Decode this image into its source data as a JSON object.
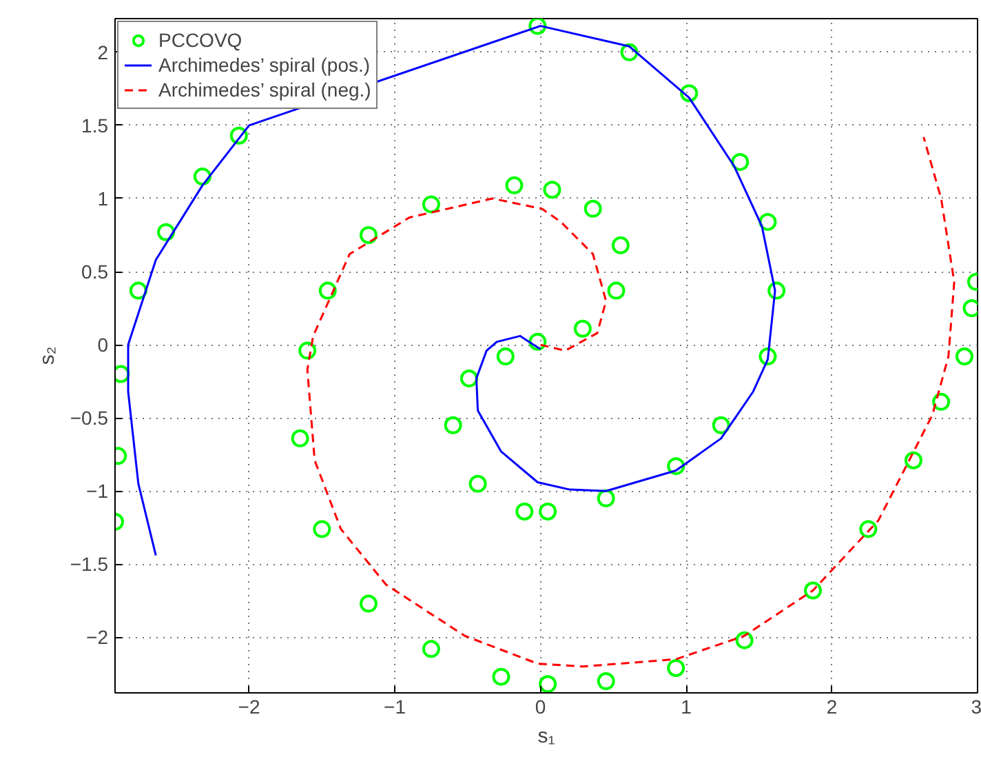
{
  "chart_data": {
    "type": "line",
    "xlabel": "s₁",
    "ylabel": "s₂",
    "xlim": [
      -2.92,
      3.0
    ],
    "ylim": [
      -2.38,
      2.23
    ],
    "xticks": [
      -2,
      -1,
      0,
      1,
      2,
      3
    ],
    "yticks": [
      -2,
      -1.5,
      -1,
      -0.5,
      0,
      0.5,
      1,
      1.5,
      2
    ],
    "grid": true,
    "legend": "top left",
    "series": [
      {
        "name": "PCCOVQ",
        "type": "scatter",
        "marker": "circle",
        "color": "#00ff00",
        "x": [
          -2.92,
          -2.9,
          -2.88,
          -2.76,
          -2.57,
          -2.32,
          -2.07,
          -0.02,
          0.61,
          1.02,
          1.37,
          1.56,
          1.62,
          1.56,
          1.24,
          0.93,
          0.45,
          0.05,
          -0.11,
          -0.43,
          -0.6,
          -0.49,
          -0.24,
          -0.02,
          0.29,
          0.52,
          0.55,
          0.36,
          0.08,
          -0.18,
          -0.75,
          -1.18,
          -1.46,
          -1.6,
          -1.65,
          -1.5,
          -1.18,
          -0.75,
          -0.27,
          0.05,
          0.45,
          0.93,
          1.4,
          1.87,
          2.25,
          2.56,
          2.75,
          2.91,
          2.96,
          2.99
        ],
        "values": [
          -1.21,
          -0.76,
          -0.2,
          0.37,
          0.77,
          1.15,
          1.43,
          2.18,
          2.0,
          1.72,
          1.25,
          0.84,
          0.37,
          -0.08,
          -0.55,
          -0.83,
          -1.05,
          -1.14,
          -1.14,
          -0.95,
          -0.55,
          -0.23,
          -0.08,
          0.02,
          0.11,
          0.37,
          0.68,
          0.93,
          1.06,
          1.09,
          0.96,
          0.75,
          0.37,
          -0.04,
          -0.64,
          -1.26,
          -1.77,
          -2.08,
          -2.27,
          -2.32,
          -2.3,
          -2.21,
          -2.02,
          -1.68,
          -1.26,
          -0.79,
          -0.39,
          -0.08,
          0.25,
          0.43
        ]
      },
      {
        "name": "Archimedes’ spiral (pos.)",
        "line_style": "solid",
        "color": "#0000ff",
        "x": [
          0.0,
          -0.14,
          -0.3,
          -0.37,
          -0.44,
          -0.43,
          -0.27,
          -0.02,
          0.2,
          0.45,
          0.93,
          1.24,
          1.46,
          1.56,
          1.61,
          1.52,
          1.33,
          1.02,
          0.61,
          0.0,
          -2.0,
          -2.32,
          -2.64,
          -2.83,
          -2.83,
          -2.76,
          -2.64
        ],
        "values": [
          -0.03,
          0.06,
          0.02,
          -0.04,
          -0.23,
          -0.45,
          -0.73,
          -0.94,
          -0.99,
          -1.0,
          -0.86,
          -0.64,
          -0.32,
          -0.1,
          0.37,
          0.81,
          1.22,
          1.69,
          2.04,
          2.18,
          1.5,
          1.09,
          0.58,
          0.0,
          -0.32,
          -0.95,
          -1.44
        ]
      },
      {
        "name": "Archimedes’ spiral (neg.)",
        "line_style": "dashed",
        "color": "#ff0000",
        "x": [
          0.0,
          0.17,
          0.39,
          0.45,
          0.36,
          0.14,
          0.01,
          -0.33,
          -0.9,
          -1.31,
          -1.56,
          -1.6,
          -1.55,
          -1.37,
          -1.06,
          -0.52,
          -0.02,
          0.29,
          0.93,
          1.4,
          1.87,
          2.32,
          2.69,
          2.8,
          2.84,
          2.75,
          2.63
        ],
        "values": [
          0.0,
          -0.04,
          0.08,
          0.3,
          0.62,
          0.84,
          0.93,
          1.0,
          0.87,
          0.62,
          0.06,
          -0.17,
          -0.79,
          -1.26,
          -1.64,
          -1.99,
          -2.18,
          -2.2,
          -2.15,
          -1.99,
          -1.68,
          -1.2,
          -0.48,
          -0.08,
          0.43,
          1.0,
          1.42
        ]
      }
    ]
  }
}
